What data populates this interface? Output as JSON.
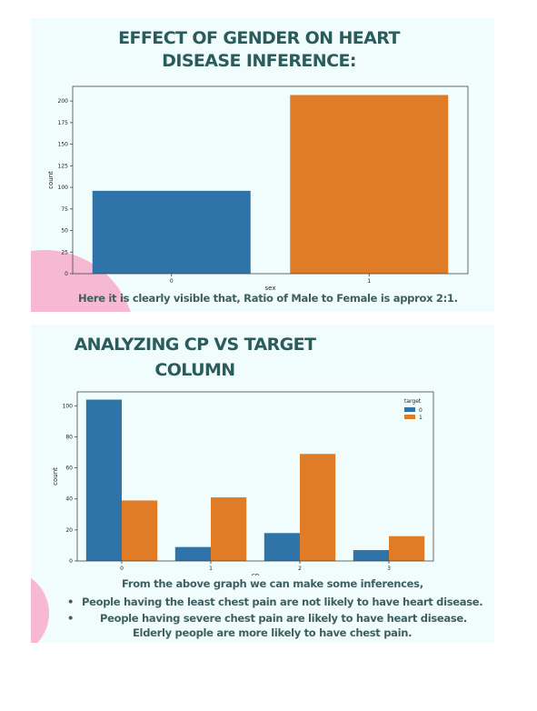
{
  "panel1": {
    "title_line1": "EFFECT OF GENDER ON HEART",
    "title_line2": "DISEASE INFERENCE:",
    "caption": "Here it is clearly visible that, Ratio of Male to Female is approx 2:1."
  },
  "panel2": {
    "title_line1": "ANALYZING CP VS TARGET",
    "title_line2": "COLUMN",
    "intro": "From the above graph we can make some inferences,",
    "bullets": [
      "People having the least chest pain are not likely to have heart disease.",
      "People having severe chest pain are likely to have heart disease."
    ],
    "closing": "Elderly people are more likely to have chest pain."
  },
  "colors": {
    "blue": "#2f74a9",
    "orange": "#e07c26",
    "panel_bg": "#f1fdfd",
    "title": "#2b5c5c",
    "pink": "#f7b8d3"
  },
  "chart_data": [
    {
      "type": "bar",
      "categories": [
        "0",
        "1"
      ],
      "values": [
        96,
        207
      ],
      "xlabel": "sex",
      "ylabel": "count",
      "ylim": [
        0,
        217
      ],
      "yticks": [
        0,
        25,
        50,
        75,
        100,
        125,
        150,
        175,
        200
      ],
      "bar_colors": [
        "#2f74a9",
        "#e07c26"
      ],
      "grid": false
    },
    {
      "type": "bar",
      "categories": [
        "0",
        "1",
        "2",
        "3"
      ],
      "series": [
        {
          "name": "0",
          "values": [
            104,
            9,
            18,
            7
          ],
          "color": "#2f74a9"
        },
        {
          "name": "1",
          "values": [
            39,
            41,
            69,
            16
          ],
          "color": "#e07c26"
        }
      ],
      "xlabel": "cp",
      "ylabel": "count",
      "ylim": [
        0,
        109
      ],
      "yticks": [
        0,
        20,
        40,
        60,
        80,
        100
      ],
      "legend_title": "target",
      "legend_position": "top-right",
      "grid": false
    }
  ]
}
